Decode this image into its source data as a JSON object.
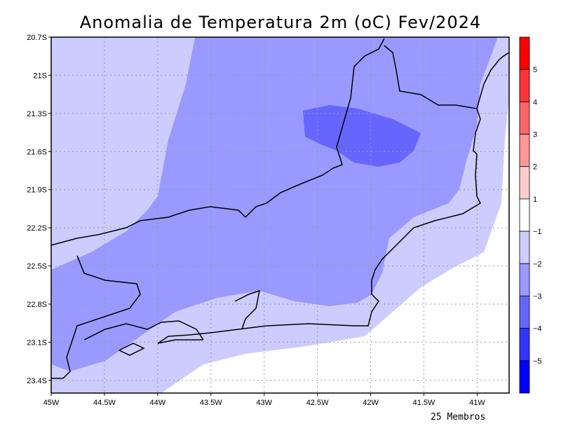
{
  "title": "Anomalia de Temperatura 2m (oC) Fev/2024",
  "footer": "25 Membros",
  "map": {
    "lon_range": [
      -45,
      -40.7
    ],
    "lat_range": [
      -23.5,
      -20.7
    ],
    "x_ticks": [
      "45W",
      "44.5W",
      "44W",
      "43.5W",
      "43W",
      "42.5W",
      "42W",
      "41.5W",
      "41W"
    ],
    "x_tick_values": [
      -45,
      -44.5,
      -44,
      -43.5,
      -43,
      -42.5,
      -42,
      -41.5,
      -41
    ],
    "y_ticks": [
      "20.7S",
      "21S",
      "21.3S",
      "21.6S",
      "21.9S",
      "22.2S",
      "22.5S",
      "22.8S",
      "23.1S",
      "23.4S"
    ],
    "y_tick_values": [
      -20.7,
      -21,
      -21.3,
      -21.6,
      -21.9,
      -22.2,
      -22.5,
      -22.8,
      -23.1,
      -23.4
    ],
    "shading_colors": {
      "minus1_minus2": "#ccccff",
      "minus2_minus3": "#9999ff",
      "minus3_minus4": "#6666ff"
    }
  },
  "colorbar": {
    "labels": [
      "5",
      "4",
      "3",
      "2",
      "1",
      "-1",
      "-2",
      "-3",
      "-4",
      "-5"
    ],
    "colors": [
      "#ff0000",
      "#ff3333",
      "#ff6666",
      "#ff9999",
      "#ffcccc",
      "#ffffff",
      "#ccccff",
      "#9999ff",
      "#6666ff",
      "#3333ff",
      "#0000ff"
    ]
  }
}
